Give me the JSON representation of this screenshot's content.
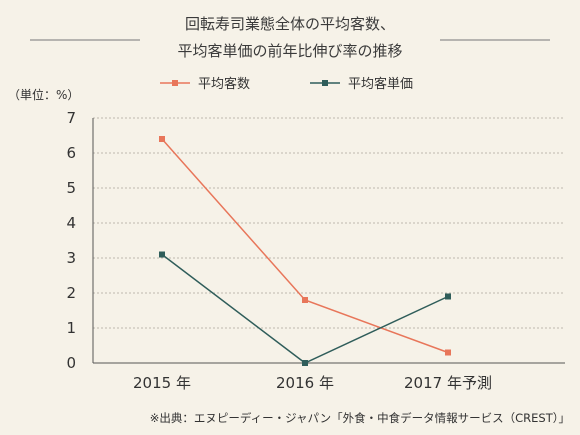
{
  "title_line1": "回転寿司業態全体の平均客数、",
  "title_line2": "平均客単価の前年比伸び率の推移",
  "unit_label": "（単位：%）",
  "source": "※出典：エヌピーディー・ジャパン「外食・中食データ情報サービス（CREST）」",
  "colors": {
    "background": "#f6f2e8",
    "series1": "#e8765a",
    "series2": "#2f5d5a",
    "axis": "#555555",
    "grid": "#bdb8ae"
  },
  "chart_data": {
    "type": "line",
    "categories": [
      "2015 年",
      "2016 年",
      "2017 年予測"
    ],
    "ylim": [
      0,
      7
    ],
    "yticks": [
      "0",
      "1",
      "2",
      "3",
      "4",
      "5",
      "6",
      "7"
    ],
    "grid": true,
    "legend_position": "top",
    "series": [
      {
        "name": "平均客数",
        "values": [
          6.4,
          1.8,
          0.3
        ],
        "color": "#e8765a"
      },
      {
        "name": "平均客単価",
        "values": [
          3.1,
          0.0,
          1.9
        ],
        "color": "#2f5d5a"
      }
    ]
  }
}
